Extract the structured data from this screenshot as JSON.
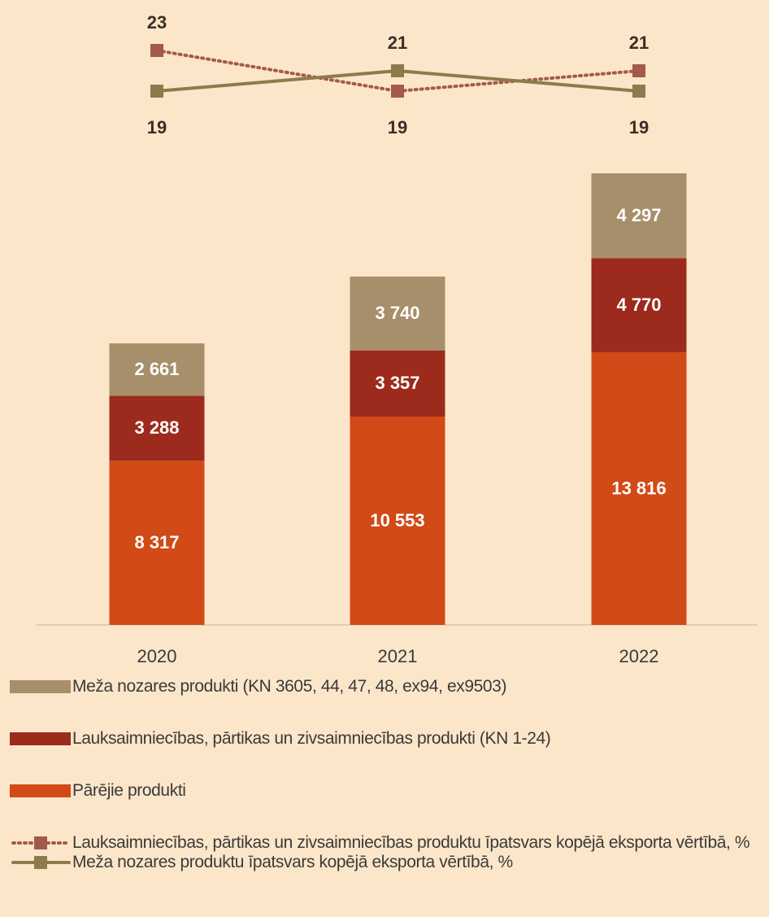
{
  "chart_data": {
    "type": "bar",
    "stacked": true,
    "categories": [
      "2020",
      "2021",
      "2022"
    ],
    "series": [
      {
        "name": "Pārējie produkti",
        "type": "bar",
        "color": "#d24a17",
        "values": [
          8317,
          10553,
          13816
        ],
        "value_labels": [
          "8 317",
          "10 553",
          "13 816"
        ]
      },
      {
        "name": "Lauksaimniecības, pārtikas un zivsaimniecības produkti (KN 1-24)",
        "type": "bar",
        "color": "#9c2a1d",
        "values": [
          3288,
          3357,
          4770
        ],
        "value_labels": [
          "3 288",
          "3 357",
          "4 770"
        ]
      },
      {
        "name": "Meža nozares produkti (KN 3605, 44, 47, 48, ex94, ex9503)",
        "type": "bar",
        "color": "#a78f6b",
        "values": [
          2661,
          3740,
          4297
        ],
        "value_labels": [
          "2 661",
          "3 740",
          "4 297"
        ]
      },
      {
        "name": "Lauksaimniecības, pārtikas un zivsaimniecības produktu īpatsvars kopējā eksporta vērtībā, %",
        "type": "line",
        "axis": "y2",
        "dash": "dotted",
        "color": "#a45a4a",
        "values": [
          23,
          19,
          21
        ]
      },
      {
        "name": "Meža nozares produktu īpatsvars kopējā eksporta vērtībā, %",
        "type": "line",
        "axis": "y2",
        "dash": "solid",
        "color": "#8d7b4b",
        "values": [
          19,
          21,
          19
        ]
      }
    ]
  }
}
